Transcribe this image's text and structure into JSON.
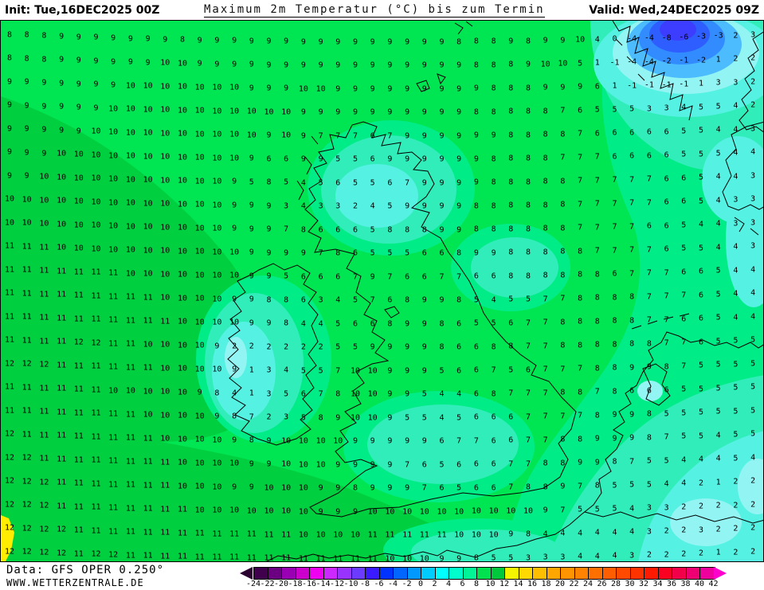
{
  "header": {
    "init": "Init: Tue,16DEC2025 00Z",
    "title": "Maximum 2m Temperatur (°C) bis zum Termin",
    "valid": "Valid: Wed,24DEC2025 09Z"
  },
  "footer": {
    "data_source": "Data: GFS OPER 0.250°",
    "website": "WWW.WETTERZENTRALE.DE"
  },
  "colorbar": {
    "unit_step": 2,
    "labels": [
      "-24",
      "-22",
      "-20",
      "-18",
      "-16",
      "-14",
      "-12",
      "-10",
      "-8",
      "-6",
      "-4",
      "-2",
      "0",
      "2",
      "4",
      "6",
      "8",
      "10",
      "12",
      "14",
      "16",
      "18",
      "20",
      "22",
      "24",
      "26",
      "28",
      "30",
      "32",
      "34",
      "36",
      "38",
      "40",
      "42"
    ],
    "segment_colors": [
      "#40004d",
      "#6b0080",
      "#9900b3",
      "#cc00cc",
      "#f000f0",
      "#cc29ff",
      "#9933ff",
      "#6b3bff",
      "#3a1aff",
      "#0033ff",
      "#0066ff",
      "#0099ff",
      "#00ccff",
      "#00ffff",
      "#00ffcc",
      "#00f596",
      "#00e150",
      "#00c83c",
      "#f5f500",
      "#ffd900",
      "#ffbf00",
      "#ffa600",
      "#ff9400",
      "#ff8200",
      "#ff7000",
      "#ff5e00",
      "#ff4a00",
      "#ff3300",
      "#ff1a00",
      "#fa0021",
      "#f20049",
      "#ee0073",
      "#ee009c"
    ],
    "left_arrow_color": "#2b0030",
    "right_arrow_color": "#ff00cc"
  },
  "map": {
    "band_colors": {
      "b12_14": "#ffec00",
      "b10_12": "#00cf3f",
      "b8_10": "#00e552",
      "b6_8": "#00ec86",
      "b4_6": "#31edb9",
      "b2_4": "#55f1e3",
      "b0_2": "#93f5f3",
      "bm2_0": "#4cbcff",
      "bm4_2": "#338cff",
      "bm6_4": "#2e5eff",
      "bm8_6": "#3d3dff"
    },
    "grid_rows": [
      [
        8,
        8,
        8,
        9,
        9,
        9,
        9,
        9,
        9,
        9,
        8,
        9,
        9,
        9,
        9,
        9,
        9,
        9,
        9,
        9,
        9,
        9,
        9,
        9,
        9,
        9,
        8,
        8,
        8,
        9,
        8,
        9,
        9,
        10,
        4,
        0,
        -4,
        -4,
        -8,
        -6,
        -3,
        -3,
        2,
        3
      ],
      [
        8,
        8,
        8,
        9,
        9,
        9,
        9,
        9,
        9,
        10,
        10,
        9,
        9,
        9,
        9,
        9,
        9,
        9,
        9,
        9,
        9,
        9,
        9,
        9,
        9,
        9,
        9,
        8,
        8,
        8,
        9,
        10,
        10,
        5,
        1,
        -1,
        -4,
        -4,
        -2,
        -1,
        -2,
        1,
        2,
        2
      ],
      [
        9,
        9,
        9,
        9,
        9,
        9,
        9,
        10,
        10,
        10,
        10,
        10,
        10,
        10,
        9,
        9,
        9,
        10,
        10,
        9,
        9,
        9,
        9,
        9,
        9,
        9,
        9,
        9,
        8,
        8,
        8,
        9,
        9,
        9,
        6,
        1,
        -1,
        -1,
        -1,
        -1,
        1,
        3,
        3,
        2
      ],
      [
        9,
        9,
        9,
        9,
        9,
        9,
        10,
        10,
        10,
        10,
        10,
        10,
        10,
        10,
        10,
        10,
        10,
        9,
        9,
        9,
        9,
        9,
        9,
        9,
        9,
        9,
        9,
        8,
        8,
        8,
        8,
        8,
        7,
        6,
        5,
        5,
        5,
        3,
        3,
        4,
        5,
        5,
        4,
        2
      ],
      [
        9,
        9,
        9,
        9,
        9,
        10,
        10,
        10,
        10,
        10,
        10,
        10,
        10,
        10,
        10,
        9,
        10,
        9,
        7,
        7,
        7,
        6,
        7,
        9,
        9,
        9,
        9,
        9,
        9,
        8,
        8,
        8,
        8,
        7,
        6,
        6,
        6,
        6,
        6,
        5,
        5,
        4,
        4,
        3
      ],
      [
        9,
        9,
        9,
        10,
        10,
        10,
        10,
        10,
        10,
        10,
        10,
        10,
        10,
        10,
        9,
        6,
        6,
        9,
        9,
        5,
        5,
        6,
        9,
        9,
        9,
        9,
        9,
        9,
        8,
        8,
        8,
        8,
        7,
        7,
        7,
        6,
        6,
        6,
        6,
        5,
        5,
        5,
        4,
        4
      ],
      [
        9,
        9,
        10,
        10,
        10,
        10,
        10,
        10,
        10,
        10,
        10,
        10,
        10,
        9,
        5,
        8,
        5,
        4,
        5,
        6,
        5,
        5,
        6,
        7,
        9,
        9,
        9,
        9,
        8,
        8,
        8,
        8,
        8,
        7,
        7,
        7,
        7,
        7,
        6,
        6,
        5,
        4,
        4,
        3
      ],
      [
        10,
        10,
        10,
        10,
        10,
        10,
        10,
        10,
        10,
        10,
        10,
        10,
        10,
        9,
        9,
        9,
        3,
        4,
        3,
        3,
        2,
        4,
        5,
        9,
        9,
        9,
        9,
        8,
        8,
        8,
        8,
        8,
        8,
        7,
        7,
        7,
        7,
        7,
        6,
        6,
        5,
        4,
        3,
        3
      ],
      [
        10,
        10,
        10,
        10,
        10,
        10,
        10,
        10,
        10,
        10,
        10,
        10,
        10,
        9,
        9,
        9,
        7,
        8,
        6,
        6,
        6,
        5,
        8,
        8,
        8,
        9,
        9,
        8,
        8,
        8,
        8,
        8,
        8,
        7,
        7,
        7,
        7,
        6,
        6,
        5,
        4,
        4,
        3,
        3
      ],
      [
        11,
        11,
        11,
        10,
        10,
        10,
        10,
        10,
        10,
        10,
        10,
        10,
        10,
        10,
        9,
        9,
        9,
        9,
        7,
        8,
        6,
        5,
        5,
        5,
        6,
        6,
        8,
        9,
        9,
        8,
        8,
        8,
        8,
        8,
        7,
        7,
        7,
        7,
        6,
        5,
        5,
        4,
        4,
        3
      ],
      [
        11,
        11,
        11,
        11,
        11,
        11,
        11,
        10,
        10,
        10,
        10,
        10,
        10,
        10,
        9,
        9,
        5,
        6,
        6,
        6,
        7,
        9,
        7,
        6,
        6,
        7,
        7,
        6,
        6,
        8,
        8,
        8,
        8,
        8,
        8,
        6,
        7,
        7,
        7,
        6,
        6,
        5,
        4,
        4
      ],
      [
        11,
        11,
        11,
        11,
        11,
        11,
        11,
        11,
        11,
        10,
        10,
        10,
        10,
        9,
        9,
        8,
        8,
        6,
        3,
        4,
        5,
        7,
        6,
        8,
        9,
        9,
        8,
        5,
        4,
        5,
        5,
        7,
        7,
        8,
        8,
        8,
        8,
        7,
        7,
        7,
        6,
        5,
        4,
        4
      ],
      [
        11,
        11,
        11,
        11,
        11,
        11,
        11,
        11,
        11,
        11,
        10,
        10,
        10,
        10,
        9,
        9,
        8,
        4,
        4,
        5,
        6,
        6,
        8,
        9,
        9,
        8,
        6,
        5,
        5,
        6,
        7,
        7,
        8,
        8,
        8,
        8,
        8,
        7,
        7,
        6,
        6,
        5,
        4,
        4
      ],
      [
        11,
        11,
        11,
        11,
        12,
        12,
        11,
        11,
        10,
        10,
        10,
        10,
        9,
        2,
        2,
        2,
        2,
        2,
        2,
        5,
        5,
        9,
        9,
        9,
        9,
        8,
        6,
        6,
        8,
        8,
        7,
        7,
        8,
        8,
        8,
        8,
        8,
        8,
        7,
        7,
        6,
        5,
        5,
        5
      ],
      [
        12,
        12,
        12,
        11,
        11,
        11,
        11,
        11,
        11,
        10,
        10,
        10,
        10,
        9,
        1,
        3,
        4,
        5,
        5,
        7,
        10,
        10,
        9,
        9,
        9,
        5,
        6,
        6,
        7,
        5,
        6,
        7,
        7,
        7,
        8,
        8,
        9,
        9,
        8,
        7,
        5,
        5,
        5,
        5
      ],
      [
        11,
        11,
        11,
        11,
        11,
        11,
        10,
        10,
        10,
        10,
        10,
        9,
        8,
        4,
        1,
        3,
        5,
        6,
        7,
        8,
        10,
        10,
        9,
        9,
        5,
        4,
        4,
        6,
        8,
        7,
        7,
        7,
        8,
        8,
        7,
        8,
        6,
        6,
        6,
        5,
        5,
        5,
        5,
        5
      ],
      [
        11,
        11,
        11,
        11,
        11,
        11,
        11,
        11,
        10,
        10,
        10,
        10,
        9,
        8,
        7,
        2,
        3,
        5,
        8,
        9,
        10,
        10,
        9,
        5,
        5,
        4,
        5,
        6,
        6,
        6,
        7,
        7,
        7,
        7,
        8,
        9,
        9,
        8,
        5,
        5,
        5,
        5,
        5,
        5
      ],
      [
        12,
        11,
        11,
        11,
        11,
        11,
        11,
        11,
        11,
        10,
        10,
        10,
        10,
        9,
        8,
        9,
        10,
        10,
        10,
        10,
        9,
        9,
        9,
        9,
        9,
        6,
        7,
        7,
        6,
        6,
        7,
        7,
        8,
        8,
        9,
        9,
        9,
        8,
        7,
        5,
        5,
        4,
        5,
        5
      ],
      [
        12,
        12,
        11,
        11,
        11,
        11,
        11,
        11,
        11,
        11,
        10,
        10,
        10,
        10,
        9,
        9,
        10,
        10,
        10,
        9,
        9,
        9,
        9,
        7,
        6,
        5,
        6,
        6,
        6,
        7,
        7,
        8,
        8,
        9,
        9,
        8,
        7,
        5,
        5,
        4,
        4,
        4,
        5,
        4
      ],
      [
        12,
        12,
        12,
        11,
        11,
        11,
        11,
        11,
        11,
        11,
        10,
        10,
        10,
        9,
        9,
        10,
        10,
        10,
        9,
        9,
        8,
        9,
        9,
        9,
        7,
        6,
        5,
        6,
        6,
        7,
        8,
        8,
        9,
        7,
        8,
        5,
        5,
        5,
        4,
        4,
        2,
        1,
        2,
        2
      ],
      [
        12,
        12,
        12,
        11,
        11,
        11,
        11,
        11,
        11,
        11,
        11,
        10,
        10,
        10,
        10,
        10,
        10,
        10,
        9,
        9,
        9,
        10,
        10,
        10,
        10,
        10,
        10,
        10,
        10,
        10,
        10,
        9,
        7,
        5,
        5,
        5,
        4,
        3,
        3,
        2,
        2,
        2,
        2,
        2
      ],
      [
        12,
        12,
        12,
        12,
        11,
        11,
        11,
        11,
        11,
        11,
        11,
        11,
        11,
        11,
        11,
        11,
        11,
        10,
        10,
        10,
        10,
        11,
        11,
        11,
        11,
        11,
        10,
        10,
        10,
        9,
        8,
        4,
        4,
        4,
        4,
        4,
        4,
        3,
        2,
        2,
        3,
        2,
        2,
        2
      ],
      [
        12,
        12,
        12,
        12,
        11,
        12,
        12,
        11,
        11,
        11,
        11,
        11,
        11,
        11,
        11,
        11,
        11,
        11,
        11,
        11,
        11,
        11,
        10,
        10,
        10,
        9,
        9,
        8,
        5,
        5,
        3,
        3,
        3,
        4,
        4,
        4,
        3,
        2,
        2,
        2,
        2,
        1,
        2,
        2
      ]
    ]
  }
}
